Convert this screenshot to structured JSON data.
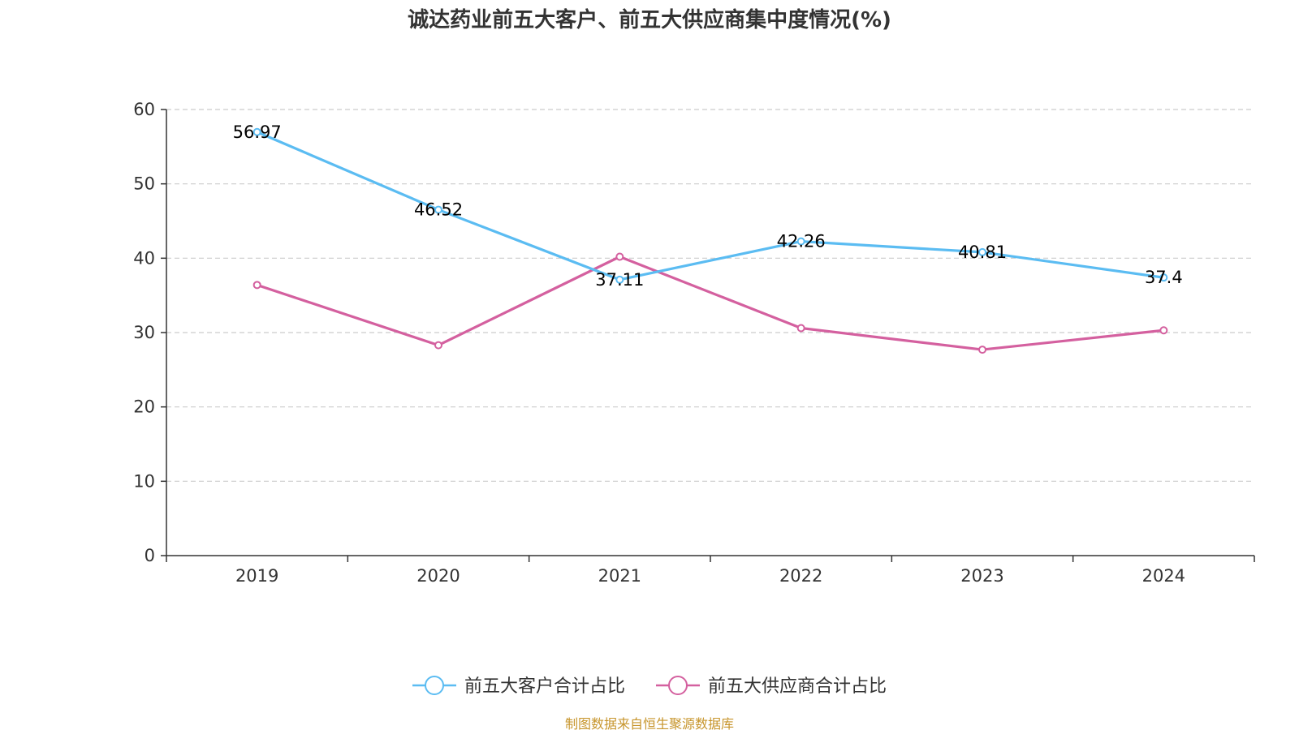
{
  "chart_data": {
    "type": "line",
    "title": "诚达药业前五大客户、前五大供应商集中度情况(%)",
    "categories": [
      "2019",
      "2020",
      "2021",
      "2022",
      "2023",
      "2024"
    ],
    "series": [
      {
        "name": "前五大客户合计占比",
        "values": [
          56.97,
          46.52,
          37.11,
          42.26,
          40.81,
          37.4
        ],
        "data_labels": [
          "56.97",
          "46.52",
          "37.11",
          "42.26",
          "40.81",
          "37.4"
        ],
        "color": "#5bbcf2"
      },
      {
        "name": "前五大供应商合计占比",
        "values": [
          36.4,
          28.3,
          40.2,
          30.6,
          27.7,
          30.3
        ],
        "color": "#d4609f"
      }
    ],
    "ylim": [
      0,
      60
    ],
    "yticks": [
      "0",
      "10",
      "20",
      "30",
      "40",
      "50",
      "60"
    ],
    "grid": true,
    "legend_position": "bottom-center"
  },
  "source_note": "制图数据来自恒生聚源数据库"
}
